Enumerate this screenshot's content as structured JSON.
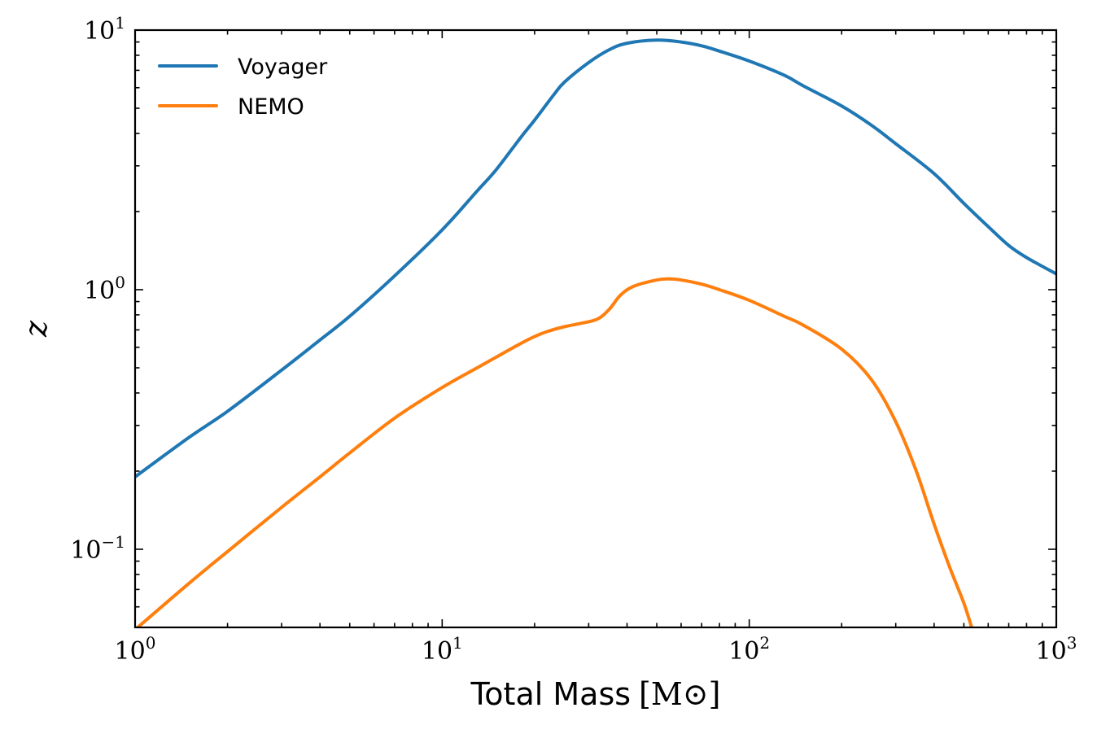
{
  "chart_data": {
    "type": "line",
    "xscale": "log",
    "yscale": "log",
    "xlim": [
      1,
      1000
    ],
    "ylim": [
      0.05,
      10
    ],
    "xlabel": "Total Mass",
    "xlabel_unit": "[M⊙]",
    "ylabel": "z",
    "x_ticks": [
      {
        "base": "10",
        "exp": "0"
      },
      {
        "base": "10",
        "exp": "1"
      },
      {
        "base": "10",
        "exp": "2"
      },
      {
        "base": "10",
        "exp": "3"
      }
    ],
    "y_ticks": [
      {
        "base": "10",
        "exp": "−1"
      },
      {
        "base": "10",
        "exp": "0"
      },
      {
        "base": "10",
        "exp": "1"
      }
    ],
    "legend_position": "top-left",
    "series": [
      {
        "name": "Voyager",
        "color": "#1f77b4",
        "x": [
          1,
          1.5,
          2,
          3,
          4,
          5,
          7,
          10,
          13,
          15,
          18,
          20,
          23,
          25,
          30,
          35,
          40,
          50,
          60,
          70,
          80,
          100,
          130,
          150,
          200,
          250,
          300,
          400,
          500,
          600,
          700,
          800,
          1000
        ],
        "y": [
          0.19,
          0.27,
          0.34,
          0.49,
          0.64,
          0.79,
          1.13,
          1.7,
          2.4,
          2.9,
          3.85,
          4.5,
          5.6,
          6.3,
          7.5,
          8.4,
          8.9,
          9.15,
          9.0,
          8.7,
          8.3,
          7.6,
          6.7,
          6.1,
          5.1,
          4.3,
          3.65,
          2.8,
          2.15,
          1.75,
          1.48,
          1.33,
          1.15
        ]
      },
      {
        "name": "NEMO",
        "color": "#ff7f0e",
        "x": [
          1,
          1.5,
          2,
          3,
          4,
          5,
          7,
          10,
          13,
          15,
          18,
          20,
          22,
          25,
          28,
          32,
          35,
          38,
          42,
          50,
          55,
          60,
          70,
          80,
          100,
          130,
          150,
          200,
          250,
          300,
          350,
          400,
          450,
          500,
          530
        ],
        "y": [
          0.049,
          0.074,
          0.098,
          0.145,
          0.19,
          0.235,
          0.32,
          0.42,
          0.5,
          0.55,
          0.62,
          0.66,
          0.69,
          0.72,
          0.74,
          0.77,
          0.84,
          0.95,
          1.03,
          1.09,
          1.1,
          1.09,
          1.05,
          1.0,
          0.91,
          0.79,
          0.73,
          0.59,
          0.45,
          0.31,
          0.2,
          0.125,
          0.085,
          0.062,
          0.05
        ]
      }
    ]
  }
}
